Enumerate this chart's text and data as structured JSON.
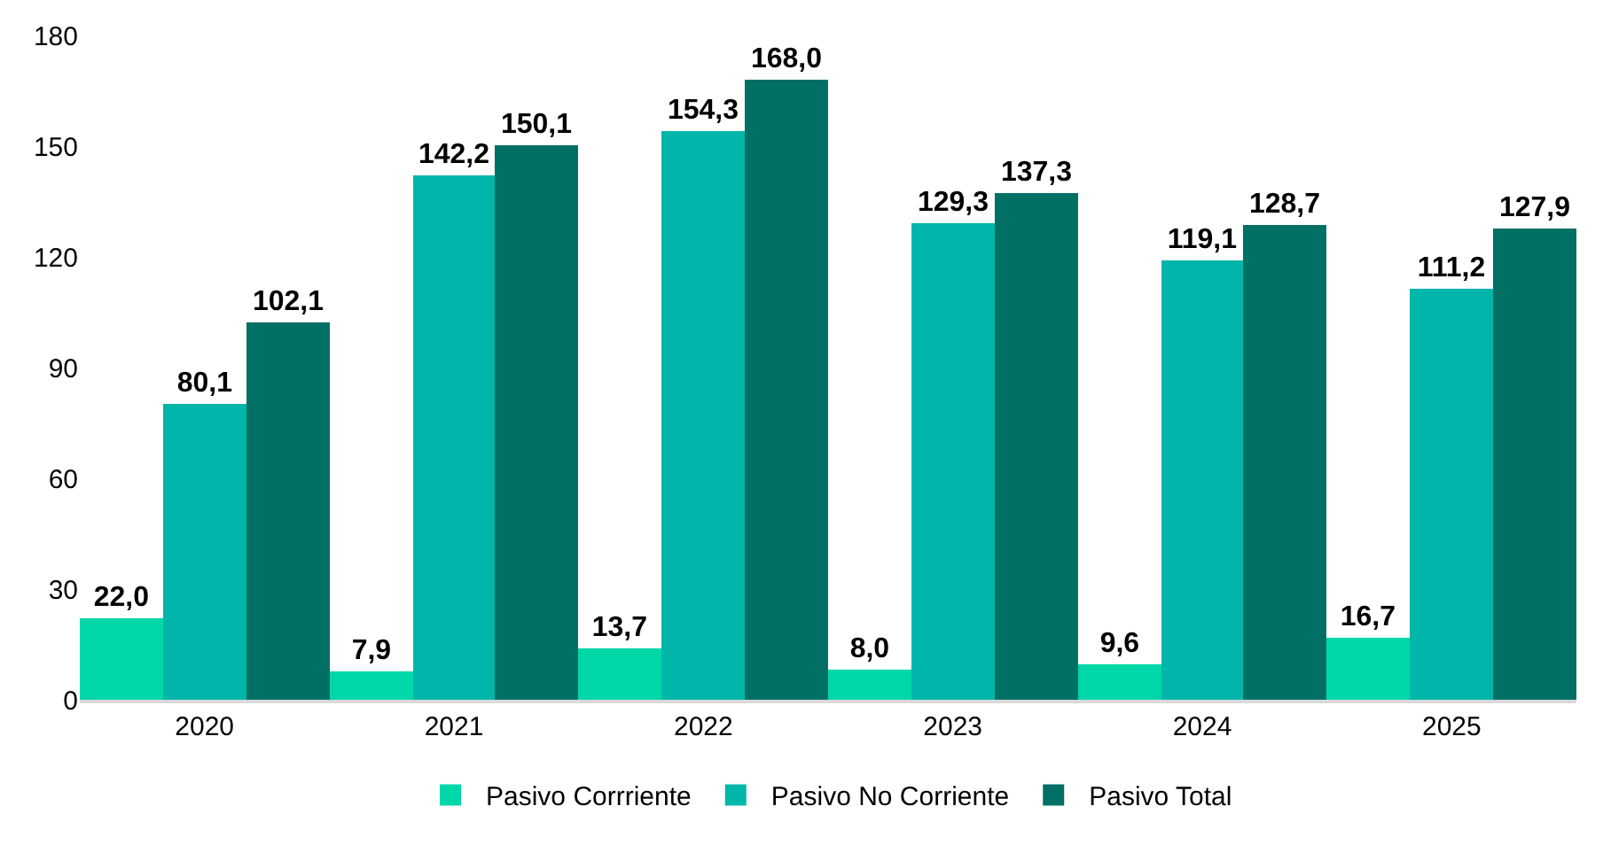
{
  "chart_data": {
    "type": "bar",
    "categories": [
      "2020",
      "2021",
      "2022",
      "2023",
      "2024",
      "2025"
    ],
    "series": [
      {
        "name": "Pasivo Corrriente",
        "color": "#00d7a9",
        "values": [
          22.0,
          7.9,
          13.7,
          8.0,
          9.6,
          16.7
        ],
        "value_labels": [
          "22,0",
          "7,9",
          "13,7",
          "8,0",
          "9,6",
          "16,7"
        ]
      },
      {
        "name": "Pasivo No Corriente",
        "color": "#00b6aa",
        "values": [
          80.1,
          142.2,
          154.3,
          129.3,
          119.1,
          111.2
        ],
        "value_labels": [
          "80,1",
          "142,2",
          "154,3",
          "129,3",
          "119,1",
          "111,2"
        ]
      },
      {
        "name": "Pasivo Total",
        "color": "#007064",
        "values": [
          102.1,
          150.1,
          168.0,
          137.3,
          128.7,
          127.9
        ],
        "value_labels": [
          "102,1",
          "150,1",
          "168,0",
          "137,3",
          "128,7",
          "127,9"
        ]
      }
    ],
    "ylim": [
      0,
      180
    ],
    "yticks": [
      0,
      30,
      60,
      90,
      120,
      150,
      180
    ],
    "grid": false,
    "legend": "bottom"
  }
}
